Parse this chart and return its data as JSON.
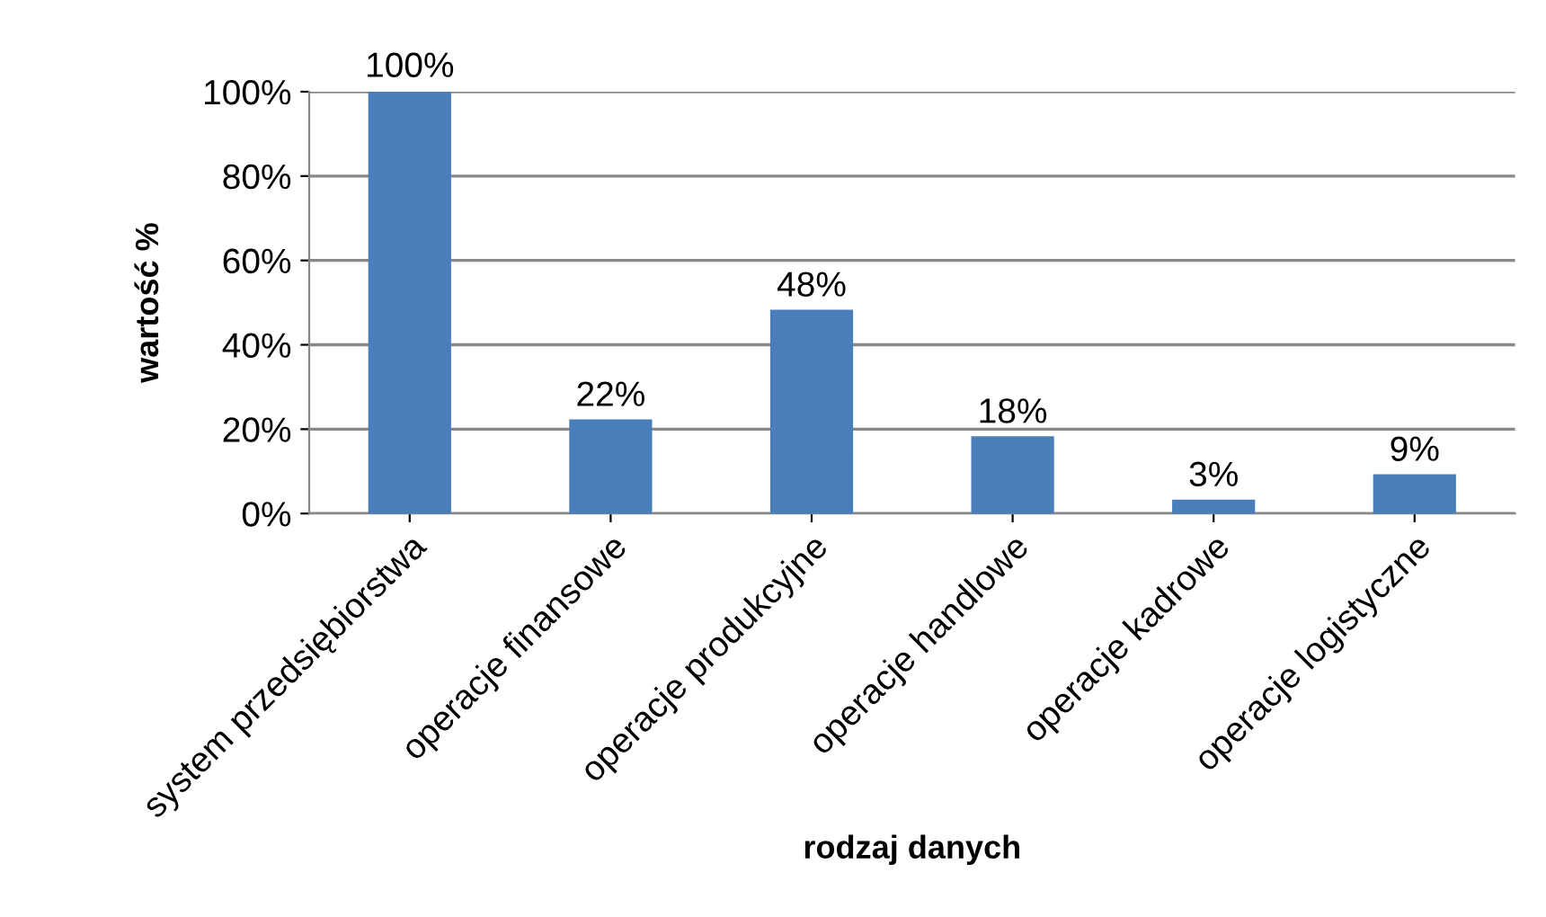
{
  "chart_data": {
    "type": "bar",
    "xlabel": "rodzaj danych",
    "ylabel": "wartość %",
    "categories": [
      "system przedsiębiorstwa",
      "operacje finansowe",
      "operacje produkcyjne",
      "operacje handlowe",
      "operacje kadrowe",
      "operacje logistyczne"
    ],
    "values": [
      100,
      22,
      48,
      18,
      3,
      9
    ],
    "value_labels": [
      "100%",
      "22%",
      "48%",
      "18%",
      "3%",
      "9%"
    ],
    "color": "#4a7ebb",
    "ylim": [
      0,
      100
    ],
    "yticks": [
      {
        "value": 0,
        "label": "0%"
      },
      {
        "value": 20,
        "label": "20%"
      },
      {
        "value": 40,
        "label": "40%"
      },
      {
        "value": 60,
        "label": "60%"
      },
      {
        "value": 80,
        "label": "80%"
      },
      {
        "value": 100,
        "label": "100%"
      }
    ],
    "grid": "y"
  }
}
